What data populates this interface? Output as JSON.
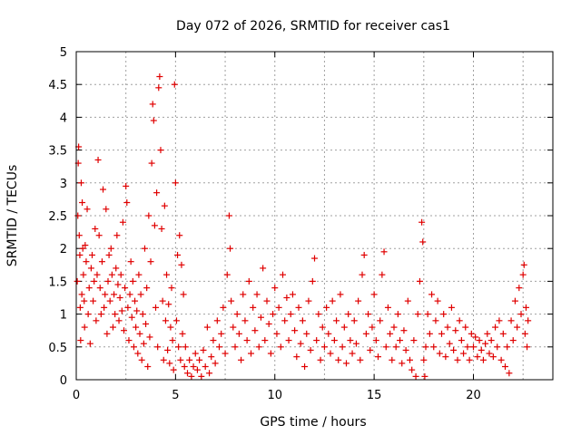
{
  "chart_data": {
    "type": "scatter",
    "title": "Day 072 of 2026, SRMTID for receiver cas1",
    "xlabel": "GPS time / hours",
    "ylabel": "SRMTID / TECUs",
    "xlim": [
      0,
      24
    ],
    "ylim": [
      0,
      5
    ],
    "xticks": [
      0,
      5,
      10,
      15,
      20
    ],
    "xtick_labels": [
      "0",
      "5",
      "10",
      "15",
      "20"
    ],
    "yticks": [
      0,
      0.5,
      1,
      1.5,
      2,
      2.5,
      3,
      3.5,
      4,
      4.5,
      5
    ],
    "ytick_labels": [
      "0",
      "0.5",
      "1",
      "1.5",
      "2",
      "2.5",
      "3",
      "3.5",
      "4",
      "4.5",
      "5"
    ],
    "grid": true,
    "marker": "+",
    "marker_color": "#e00000",
    "series": [
      {
        "name": "SRMTID",
        "points": [
          [
            0.05,
            1.5
          ],
          [
            0.08,
            2.5
          ],
          [
            0.1,
            3.3
          ],
          [
            0.12,
            3.55
          ],
          [
            0.15,
            2.2
          ],
          [
            0.18,
            1.9
          ],
          [
            0.2,
            1.1
          ],
          [
            0.22,
            0.6
          ],
          [
            0.25,
            3.0
          ],
          [
            0.28,
            1.3
          ],
          [
            0.3,
            2.7
          ],
          [
            0.33,
            2.0
          ],
          [
            0.36,
            1.6
          ],
          [
            0.4,
            1.2
          ],
          [
            0.42,
            0.8
          ],
          [
            0.45,
            2.05
          ],
          [
            0.5,
            1.8
          ],
          [
            0.55,
            2.6
          ],
          [
            0.6,
            1.0
          ],
          [
            0.65,
            1.4
          ],
          [
            0.7,
            0.55
          ],
          [
            0.75,
            1.7
          ],
          [
            0.8,
            1.9
          ],
          [
            0.85,
            1.2
          ],
          [
            0.9,
            1.5
          ],
          [
            0.95,
            2.3
          ],
          [
            1.0,
            0.9
          ],
          [
            1.05,
            1.6
          ],
          [
            1.1,
            3.35
          ],
          [
            1.15,
            2.2
          ],
          [
            1.2,
            1.4
          ],
          [
            1.25,
            1.0
          ],
          [
            1.3,
            1.8
          ],
          [
            1.35,
            2.9
          ],
          [
            1.4,
            1.1
          ],
          [
            1.45,
            1.3
          ],
          [
            1.5,
            2.6
          ],
          [
            1.55,
            0.7
          ],
          [
            1.6,
            1.5
          ],
          [
            1.65,
            1.9
          ],
          [
            1.7,
            1.2
          ],
          [
            1.75,
            2.0
          ],
          [
            1.8,
            1.6
          ],
          [
            1.85,
            0.8
          ],
          [
            1.9,
            1.3
          ],
          [
            1.95,
            1.0
          ],
          [
            2.0,
            1.7
          ],
          [
            2.05,
            2.2
          ],
          [
            2.1,
            1.45
          ],
          [
            2.15,
            0.9
          ],
          [
            2.2,
            1.25
          ],
          [
            2.25,
            1.6
          ],
          [
            2.3,
            1.05
          ],
          [
            2.35,
            2.4
          ],
          [
            2.4,
            0.75
          ],
          [
            2.45,
            1.4
          ],
          [
            2.5,
            2.95
          ],
          [
            2.55,
            2.7
          ],
          [
            2.6,
            1.1
          ],
          [
            2.65,
            0.6
          ],
          [
            2.7,
            1.3
          ],
          [
            2.75,
            1.8
          ],
          [
            2.8,
            0.95
          ],
          [
            2.85,
            1.5
          ],
          [
            2.9,
            0.5
          ],
          [
            2.95,
            1.2
          ],
          [
            3.0,
            0.8
          ],
          [
            3.05,
            1.05
          ],
          [
            3.1,
            0.4
          ],
          [
            3.15,
            1.6
          ],
          [
            3.2,
            0.7
          ],
          [
            3.25,
            1.3
          ],
          [
            3.3,
            0.3
          ],
          [
            3.35,
            1.0
          ],
          [
            3.4,
            0.55
          ],
          [
            3.45,
            2.0
          ],
          [
            3.5,
            0.85
          ],
          [
            3.55,
            1.4
          ],
          [
            3.6,
            0.2
          ],
          [
            3.65,
            2.5
          ],
          [
            3.7,
            0.65
          ],
          [
            3.75,
            1.8
          ],
          [
            3.8,
            3.3
          ],
          [
            3.85,
            4.2
          ],
          [
            3.9,
            3.95
          ],
          [
            3.95,
            2.35
          ],
          [
            4.0,
            1.1
          ],
          [
            4.05,
            2.85
          ],
          [
            4.1,
            0.5
          ],
          [
            4.15,
            4.45
          ],
          [
            4.2,
            4.62
          ],
          [
            4.25,
            3.5
          ],
          [
            4.3,
            2.3
          ],
          [
            4.35,
            1.2
          ],
          [
            4.4,
            0.3
          ],
          [
            4.45,
            2.65
          ],
          [
            4.5,
            0.9
          ],
          [
            4.55,
            1.6
          ],
          [
            4.6,
            0.45
          ],
          [
            4.65,
            1.15
          ],
          [
            4.7,
            0.25
          ],
          [
            4.75,
            0.8
          ],
          [
            4.8,
            1.4
          ],
          [
            4.85,
            0.6
          ],
          [
            4.9,
            0.15
          ],
          [
            4.95,
            4.5
          ],
          [
            5.0,
            3.0
          ],
          [
            5.05,
            0.9
          ],
          [
            5.1,
            1.9
          ],
          [
            5.15,
            0.5
          ],
          [
            5.2,
            2.2
          ],
          [
            5.25,
            0.3
          ],
          [
            5.3,
            1.75
          ],
          [
            5.35,
            0.7
          ],
          [
            5.4,
            1.3
          ],
          [
            5.45,
            0.2
          ],
          [
            5.5,
            0.5
          ],
          [
            5.6,
            0.1
          ],
          [
            5.7,
            0.3
          ],
          [
            5.8,
            0.05
          ],
          [
            5.9,
            0.2
          ],
          [
            6.0,
            0.4
          ],
          [
            6.1,
            0.15
          ],
          [
            6.2,
            0.3
          ],
          [
            6.3,
            0.05
          ],
          [
            6.4,
            0.45
          ],
          [
            6.5,
            0.2
          ],
          [
            6.6,
            0.8
          ],
          [
            6.7,
            0.1
          ],
          [
            6.8,
            0.35
          ],
          [
            6.9,
            0.6
          ],
          [
            7.0,
            0.25
          ],
          [
            7.1,
            0.9
          ],
          [
            7.2,
            0.5
          ],
          [
            7.3,
            0.7
          ],
          [
            7.4,
            1.1
          ],
          [
            7.5,
            0.4
          ],
          [
            7.6,
            1.6
          ],
          [
            7.7,
            2.5
          ],
          [
            7.75,
            2.0
          ],
          [
            7.8,
            1.2
          ],
          [
            7.9,
            0.8
          ],
          [
            8.0,
            0.5
          ],
          [
            8.1,
            1.0
          ],
          [
            8.2,
            0.7
          ],
          [
            8.3,
            0.3
          ],
          [
            8.4,
            1.3
          ],
          [
            8.5,
            0.9
          ],
          [
            8.6,
            0.6
          ],
          [
            8.7,
            1.5
          ],
          [
            8.8,
            0.4
          ],
          [
            8.9,
            1.1
          ],
          [
            9.0,
            0.75
          ],
          [
            9.1,
            1.3
          ],
          [
            9.2,
            0.5
          ],
          [
            9.3,
            0.95
          ],
          [
            9.4,
            1.7
          ],
          [
            9.5,
            0.6
          ],
          [
            9.6,
            1.2
          ],
          [
            9.7,
            0.85
          ],
          [
            9.8,
            0.4
          ],
          [
            9.9,
            1.0
          ],
          [
            10.0,
            1.4
          ],
          [
            10.1,
            0.7
          ],
          [
            10.2,
            1.1
          ],
          [
            10.3,
            0.5
          ],
          [
            10.4,
            1.6
          ],
          [
            10.5,
            0.9
          ],
          [
            10.6,
            1.25
          ],
          [
            10.7,
            0.6
          ],
          [
            10.8,
            1.0
          ],
          [
            10.9,
            1.3
          ],
          [
            11.0,
            0.75
          ],
          [
            11.1,
            0.35
          ],
          [
            11.2,
            1.1
          ],
          [
            11.3,
            0.55
          ],
          [
            11.4,
            0.9
          ],
          [
            11.5,
            0.2
          ],
          [
            11.6,
            0.7
          ],
          [
            11.7,
            1.2
          ],
          [
            11.8,
            0.45
          ],
          [
            11.9,
            1.5
          ],
          [
            12.0,
            1.85
          ],
          [
            12.1,
            0.6
          ],
          [
            12.2,
            1.0
          ],
          [
            12.3,
            0.3
          ],
          [
            12.4,
            0.8
          ],
          [
            12.5,
            0.5
          ],
          [
            12.6,
            1.1
          ],
          [
            12.7,
            0.7
          ],
          [
            12.8,
            0.4
          ],
          [
            12.9,
            1.2
          ],
          [
            13.0,
            0.6
          ],
          [
            13.1,
            0.9
          ],
          [
            13.2,
            0.3
          ],
          [
            13.3,
            1.3
          ],
          [
            13.4,
            0.5
          ],
          [
            13.5,
            0.8
          ],
          [
            13.6,
            0.25
          ],
          [
            13.7,
            1.0
          ],
          [
            13.8,
            0.6
          ],
          [
            13.9,
            0.4
          ],
          [
            14.0,
            0.9
          ],
          [
            14.1,
            0.55
          ],
          [
            14.2,
            1.2
          ],
          [
            14.3,
            0.3
          ],
          [
            14.4,
            1.6
          ],
          [
            14.5,
            1.9
          ],
          [
            14.6,
            0.7
          ],
          [
            14.7,
            1.0
          ],
          [
            14.8,
            0.45
          ],
          [
            14.9,
            0.8
          ],
          [
            15.0,
            1.3
          ],
          [
            15.1,
            0.6
          ],
          [
            15.2,
            0.35
          ],
          [
            15.3,
            0.9
          ],
          [
            15.4,
            1.6
          ],
          [
            15.5,
            1.95
          ],
          [
            15.6,
            0.5
          ],
          [
            15.7,
            1.1
          ],
          [
            15.8,
            0.7
          ],
          [
            15.9,
            0.3
          ],
          [
            16.0,
            0.8
          ],
          [
            16.1,
            0.5
          ],
          [
            16.2,
            1.0
          ],
          [
            16.3,
            0.6
          ],
          [
            16.4,
            0.25
          ],
          [
            16.5,
            0.75
          ],
          [
            16.6,
            0.45
          ],
          [
            16.7,
            1.2
          ],
          [
            16.8,
            0.3
          ],
          [
            16.9,
            0.15
          ],
          [
            17.0,
            0.6
          ],
          [
            17.1,
            0.05
          ],
          [
            17.2,
            1.0
          ],
          [
            17.3,
            1.5
          ],
          [
            17.4,
            2.4
          ],
          [
            17.45,
            2.1
          ],
          [
            17.5,
            0.3
          ],
          [
            17.55,
            0.05
          ],
          [
            17.6,
            0.5
          ],
          [
            17.7,
            1.0
          ],
          [
            17.8,
            0.7
          ],
          [
            17.9,
            1.3
          ],
          [
            18.0,
            0.5
          ],
          [
            18.1,
            0.9
          ],
          [
            18.2,
            1.2
          ],
          [
            18.3,
            0.4
          ],
          [
            18.4,
            0.7
          ],
          [
            18.5,
            1.0
          ],
          [
            18.6,
            0.35
          ],
          [
            18.7,
            0.8
          ],
          [
            18.8,
            0.55
          ],
          [
            18.9,
            1.1
          ],
          [
            19.0,
            0.45
          ],
          [
            19.1,
            0.75
          ],
          [
            19.2,
            0.3
          ],
          [
            19.3,
            0.9
          ],
          [
            19.4,
            0.6
          ],
          [
            19.5,
            0.4
          ],
          [
            19.6,
            0.8
          ],
          [
            19.7,
            0.5
          ],
          [
            19.8,
            0.3
          ],
          [
            19.9,
            0.7
          ],
          [
            20.0,
            0.5
          ],
          [
            20.1,
            0.65
          ],
          [
            20.2,
            0.35
          ],
          [
            20.3,
            0.6
          ],
          [
            20.4,
            0.45
          ],
          [
            20.5,
            0.3
          ],
          [
            20.6,
            0.55
          ],
          [
            20.7,
            0.7
          ],
          [
            20.8,
            0.4
          ],
          [
            20.9,
            0.6
          ],
          [
            21.0,
            0.35
          ],
          [
            21.1,
            0.8
          ],
          [
            21.2,
            0.5
          ],
          [
            21.3,
            0.9
          ],
          [
            21.4,
            0.3
          ],
          [
            21.5,
            0.7
          ],
          [
            21.6,
            0.2
          ],
          [
            21.7,
            0.5
          ],
          [
            21.8,
            0.1
          ],
          [
            21.9,
            0.9
          ],
          [
            22.0,
            0.6
          ],
          [
            22.1,
            1.2
          ],
          [
            22.2,
            0.8
          ],
          [
            22.3,
            1.4
          ],
          [
            22.4,
            1.0
          ],
          [
            22.5,
            1.6
          ],
          [
            22.55,
            1.75
          ],
          [
            22.6,
            0.7
          ],
          [
            22.65,
            1.1
          ],
          [
            22.7,
            0.5
          ],
          [
            22.75,
            0.9
          ]
        ]
      }
    ]
  }
}
